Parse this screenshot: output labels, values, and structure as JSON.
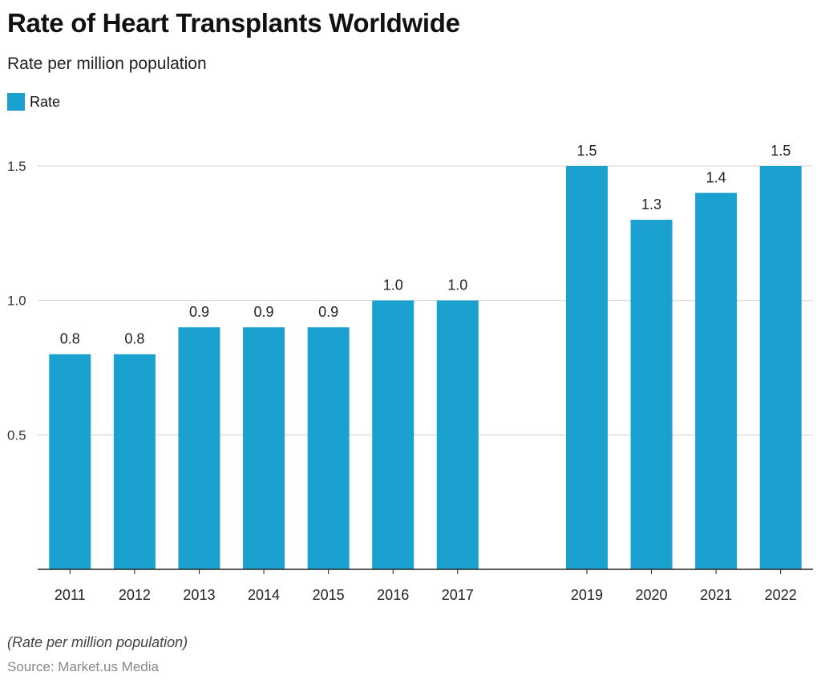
{
  "chart_data": {
    "type": "bar",
    "title": "Rate of Heart Transplants Worldwide",
    "subtitle": "Rate per million population",
    "legend": {
      "position": "top-left",
      "entries": [
        {
          "name": "Rate",
          "color": "#1ba1cf"
        }
      ]
    },
    "categories": [
      "2011",
      "2012",
      "2013",
      "2014",
      "2015",
      "2016",
      "2017",
      "2019",
      "2020",
      "2021",
      "2022"
    ],
    "x": [
      2011,
      2012,
      2013,
      2014,
      2015,
      2016,
      2017,
      2019,
      2020,
      2021,
      2022
    ],
    "series": [
      {
        "name": "Rate",
        "values": [
          0.8,
          0.8,
          0.9,
          0.9,
          0.9,
          1.0,
          1.0,
          1.5,
          1.3,
          1.4,
          1.5
        ],
        "color": "#1ba1cf"
      }
    ],
    "data_labels": [
      "0.8",
      "0.8",
      "0.9",
      "0.9",
      "0.9",
      "1.0",
      "1.0",
      "1.5",
      "1.3",
      "1.4",
      "1.5"
    ],
    "ylim": [
      0,
      1.5
    ],
    "yticks": [
      "0.5",
      "1.0",
      "1.5"
    ],
    "ytick_values": [
      0.5,
      1.0,
      1.5
    ],
    "grid": true,
    "xlabel": "",
    "ylabel": ""
  },
  "footer": {
    "note": "(Rate per million population)",
    "source": "Source: Market.us Media"
  }
}
